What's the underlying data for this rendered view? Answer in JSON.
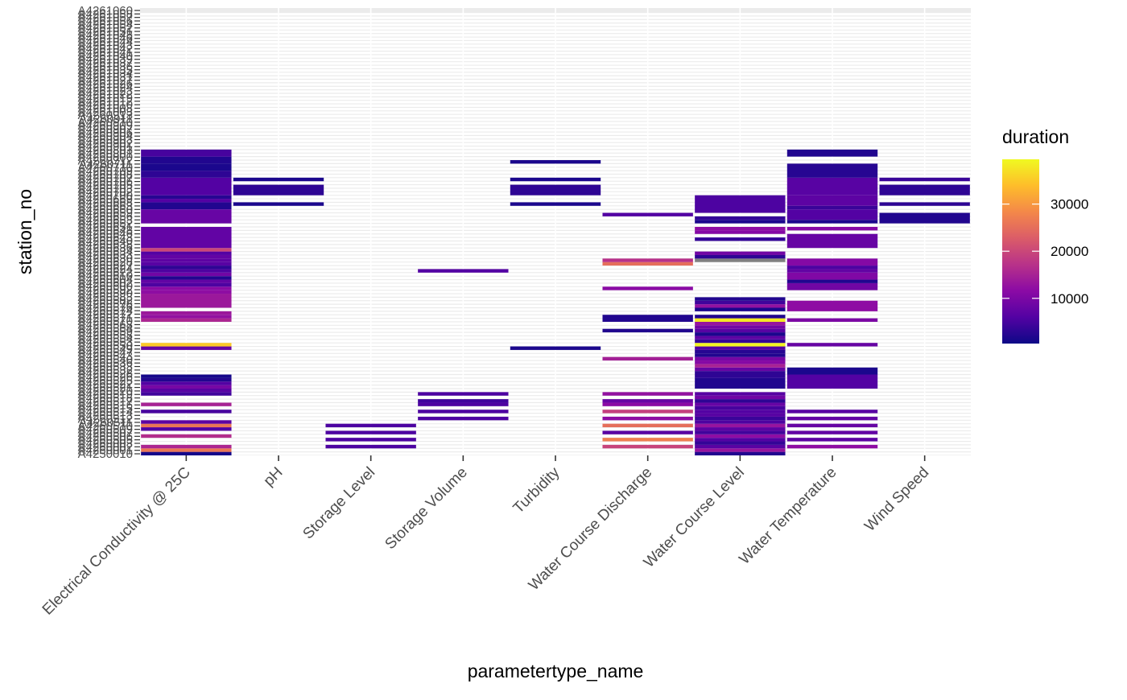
{
  "chart_data": {
    "type": "heatmap",
    "xlabel": "parametertype_name",
    "ylabel": "station_no",
    "legend_title": "duration",
    "legend_position": "right",
    "legend_ticks": [
      10000,
      20000,
      30000
    ],
    "legend_tick_labels": [
      "10000",
      "20000",
      "30000"
    ],
    "color_range": [
      400,
      39500
    ],
    "na_color": "#808080",
    "palette": [
      "#0d0887",
      "#5302a3",
      "#8b0aa5",
      "#b83289",
      "#db5c68",
      "#f48849",
      "#febd2a",
      "#f0f921"
    ],
    "x_categories": [
      "Electrical Conductivity @ 25C",
      "pH",
      "Storage Level",
      "Storage Volume",
      "Turbidity",
      "Water Course Discharge",
      "Water Course Level",
      "Water Temperature",
      "Wind Speed"
    ],
    "y_categories": [
      "A4250010",
      "A4250020",
      "A4260001",
      "A4260002",
      "A4260003",
      "A4260004",
      "A4260005",
      "A4260006",
      "A4260007",
      "A4260008",
      "A4260009",
      "A4260010",
      "A4260011",
      "A4260012",
      "A4260013",
      "A4260014",
      "A4260015",
      "A4260016",
      "A4260017",
      "A4260018",
      "A4260019",
      "A4260020",
      "A4260021",
      "A4260022",
      "A4260023",
      "A4260024",
      "A4260025",
      "A4260026",
      "A4260027",
      "A4260028",
      "A4260029",
      "A4260030",
      "A4260031",
      "A4260032",
      "A4260033",
      "A4260034",
      "A4260035",
      "A4260036",
      "A4260037",
      "A4260038",
      "A4260039",
      "A4260040",
      "A4260041",
      "A4260042",
      "A4260043",
      "A4260044",
      "A4260045",
      "A4260046",
      "A4260047",
      "A4260048",
      "A4260049",
      "A4260050",
      "A4260051",
      "A4260052",
      "A4260053",
      "A4260054",
      "A4260055",
      "A4260056",
      "A4260057",
      "A4260058",
      "A4260059",
      "A4260060",
      "A4260061",
      "A4260062",
      "A4260063",
      "A4260064",
      "A4261001",
      "A4261002",
      "A4261003",
      "A4261004",
      "A4261005",
      "A4261006",
      "A4261007",
      "A4261008",
      "A4261009",
      "A4261010",
      "A4261011",
      "A4261012",
      "A4261013",
      "A4261014",
      "A4261015",
      "A4261016",
      "A4261017",
      "A4261018",
      "A4261019",
      "A4261020",
      "A4261021",
      "A4261022",
      "A4261023",
      "A4261024",
      "A4261025",
      "A4261026",
      "A4261027",
      "A4261028",
      "A4261029",
      "A4261030",
      "A4261031",
      "A4261032",
      "A4261033",
      "A4261034",
      "A4261035",
      "A4261036",
      "A4261037",
      "A4261038",
      "A4261039",
      "A4261040",
      "A4261041",
      "A4261042",
      "A4261043",
      "A4261044",
      "A4261045",
      "A4261046",
      "A4261047",
      "A4261048",
      "A4261049",
      "A4261050",
      "A4261051",
      "A4261052",
      "A4261053",
      "A4261054",
      "A4261055",
      "A4261056",
      "A4261057",
      "A4261058",
      "A4261059",
      "A4261060"
    ],
    "y_tick_labels": [
      "A4250010",
      "A4260001",
      "A4260002",
      "A4260003",
      "A4260505",
      "A4260506",
      "A4260507",
      "A4260509",
      "A4260510",
      "A4260511",
      "A4260512",
      "A4260513",
      "A4260514",
      "A4260515",
      "A4260516",
      "A4260517",
      "A4260518",
      "A4260519",
      "A4260520",
      "A4260521",
      "A4260522",
      "A4260525",
      "A4260526",
      "A4260528",
      "A4260532",
      "A4260533",
      "A4260536",
      "A4260540",
      "A4260543",
      "A4260547",
      "A4260549",
      "A4260550",
      "A4260553",
      "A4260554",
      "A4260558",
      "A4260559",
      "A4260564",
      "A4260568",
      "A4260570",
      "A4260571",
      "A4260572",
      "A4260574",
      "A4260576",
      "A4260578",
      "A4260582",
      "A4260583",
      "A4260590",
      "A4260592",
      "A4260600",
      "A4260602",
      "A4260604",
      "A4260610",
      "A4260622",
      "A4260624",
      "A4260627",
      "A4260628",
      "A4260630",
      "A4260633",
      "A4260634",
      "A4260636",
      "A4260638",
      "A4260640",
      "A4260643",
      "A4260646",
      "A4260648",
      "A4260651",
      "A4260652",
      "A4260653",
      "A4260656",
      "A4260659",
      "A4260660",
      "A4260663",
      "A4260668",
      "A4260669",
      "A4260700",
      "A4260702",
      "A4260703",
      "A4260705",
      "A4260706",
      "A4260707",
      "A4260708",
      "A4260709",
      "A4260710",
      "A4260711",
      "A4260712",
      "A4260800",
      "A4260801",
      "A4260803",
      "A4260901",
      "A4260902",
      "A4260903",
      "A4260904",
      "A4260906",
      "A4260907",
      "A4260909",
      "A4260910",
      "A4260911",
      "A4260913",
      "A4261003",
      "A4261008",
      "A4261010",
      "A4261012",
      "A4261019",
      "A4261022",
      "A4261023",
      "A4261024",
      "A4261026",
      "A4261027",
      "A4261031",
      "A4261034",
      "A4261035",
      "A4261036",
      "A4261037",
      "A4261039",
      "A4261040",
      "A4261041",
      "A4261042",
      "A4261043",
      "A4261044",
      "A4261046",
      "A4261048",
      "A4261051",
      "A4261052",
      "A4261054",
      "A4261056",
      "A4261057",
      "A4261058",
      "A4261060"
    ],
    "tiles": [
      {
        "c": 0,
        "r0": 0,
        "r1": 0,
        "v": 1000
      },
      {
        "c": 0,
        "r0": 1,
        "r1": 1,
        "v": 26000
      },
      {
        "c": 0,
        "r0": 2,
        "r1": 2,
        "v": 15500
      },
      {
        "c": 0,
        "r0": 5,
        "r1": 5,
        "v": 16500
      },
      {
        "c": 0,
        "r0": 7,
        "r1": 7,
        "v": 6000
      },
      {
        "c": 0,
        "r0": 8,
        "r1": 8,
        "v": 26000
      },
      {
        "c": 0,
        "r0": 9,
        "r1": 9,
        "v": 7000
      },
      {
        "c": 0,
        "r0": 12,
        "r1": 12,
        "v": 5000
      },
      {
        "c": 0,
        "r0": 14,
        "r1": 14,
        "v": 15000
      },
      {
        "c": 0,
        "r0": 17,
        "r1": 17,
        "v": 4500
      },
      {
        "c": 0,
        "r0": 18,
        "r1": 18,
        "v": 6500
      },
      {
        "c": 0,
        "r0": 19,
        "r1": 19,
        "v": 9500
      },
      {
        "c": 0,
        "r0": 20,
        "r1": 20,
        "v": 6000
      },
      {
        "c": 0,
        "r0": 21,
        "r1": 21,
        "v": 2000
      },
      {
        "c": 0,
        "r0": 22,
        "r1": 22,
        "v": 1000
      },
      {
        "c": 0,
        "r0": 30,
        "r1": 30,
        "v": 8000
      },
      {
        "c": 0,
        "r0": 31,
        "r1": 31,
        "v": 35000
      },
      {
        "c": 0,
        "r0": 38,
        "r1": 38,
        "v": 15500
      },
      {
        "c": 0,
        "r0": 39,
        "r1": 39,
        "v": 12500
      },
      {
        "c": 0,
        "r0": 40,
        "r1": 40,
        "v": 13500
      },
      {
        "c": 0,
        "r0": 42,
        "r1": 45,
        "v": 13500
      },
      {
        "c": 0,
        "r0": 46,
        "r1": 46,
        "v": 12000
      },
      {
        "c": 0,
        "r0": 47,
        "r1": 47,
        "v": 11500
      },
      {
        "c": 0,
        "r0": 48,
        "r1": 48,
        "v": 5500
      },
      {
        "c": 0,
        "r0": 49,
        "r1": 49,
        "v": 7500
      },
      {
        "c": 0,
        "r0": 50,
        "r1": 50,
        "v": 2000
      },
      {
        "c": 0,
        "r0": 51,
        "r1": 51,
        "v": 9000
      },
      {
        "c": 0,
        "r0": 52,
        "r1": 52,
        "v": 5500
      },
      {
        "c": 0,
        "r0": 53,
        "r1": 53,
        "v": 3000
      },
      {
        "c": 0,
        "r0": 54,
        "r1": 54,
        "v": 6500
      },
      {
        "c": 0,
        "r0": 55,
        "r1": 55,
        "v": 7000
      },
      {
        "c": 0,
        "r0": 56,
        "r1": 56,
        "v": 7500
      },
      {
        "c": 0,
        "r0": 57,
        "r1": 57,
        "v": 6000
      },
      {
        "c": 0,
        "r0": 58,
        "r1": 58,
        "v": 20000
      },
      {
        "c": 0,
        "r0": 59,
        "r1": 64,
        "v": 7500
      },
      {
        "c": 0,
        "r0": 66,
        "r1": 69,
        "v": 8000
      },
      {
        "c": 0,
        "r0": 70,
        "r1": 71,
        "v": 2000
      },
      {
        "c": 0,
        "r0": 72,
        "r1": 72,
        "v": 6000
      },
      {
        "c": 0,
        "r0": 73,
        "r1": 73,
        "v": 2500
      },
      {
        "c": 0,
        "r0": 74,
        "r1": 78,
        "v": 6000
      },
      {
        "c": 0,
        "r0": 79,
        "r1": 80,
        "v": 3000
      },
      {
        "c": 0,
        "r0": 81,
        "r1": 82,
        "v": 1500
      },
      {
        "c": 0,
        "r0": 83,
        "r1": 84,
        "v": 2000
      },
      {
        "c": 0,
        "r0": 85,
        "r1": 86,
        "v": 5000
      },
      {
        "c": 1,
        "r0": 71,
        "r1": 71,
        "v": 1500
      },
      {
        "c": 1,
        "r0": 74,
        "r1": 76,
        "v": 3000
      },
      {
        "c": 1,
        "r0": 78,
        "r1": 78,
        "v": 1500
      },
      {
        "c": 2,
        "r0": 2,
        "r1": 2,
        "v": 5500
      },
      {
        "c": 2,
        "r0": 4,
        "r1": 4,
        "v": 5500
      },
      {
        "c": 2,
        "r0": 6,
        "r1": 6,
        "v": 5500
      },
      {
        "c": 2,
        "r0": 8,
        "r1": 8,
        "v": 5500
      },
      {
        "c": 3,
        "r0": 10,
        "r1": 10,
        "v": 5500
      },
      {
        "c": 3,
        "r0": 12,
        "r1": 12,
        "v": 5500
      },
      {
        "c": 3,
        "r0": 14,
        "r1": 14,
        "v": 5500
      },
      {
        "c": 3,
        "r0": 15,
        "r1": 15,
        "v": 4500
      },
      {
        "c": 3,
        "r0": 17,
        "r1": 17,
        "v": 5500
      },
      {
        "c": 3,
        "r0": 52,
        "r1": 52,
        "v": 6000
      },
      {
        "c": 4,
        "r0": 30,
        "r1": 30,
        "v": 1500
      },
      {
        "c": 4,
        "r0": 71,
        "r1": 71,
        "v": 1500
      },
      {
        "c": 4,
        "r0": 74,
        "r1": 76,
        "v": 3000
      },
      {
        "c": 4,
        "r0": 78,
        "r1": 78,
        "v": 1500
      },
      {
        "c": 4,
        "r0": 83,
        "r1": 83,
        "v": 1500
      },
      {
        "c": 5,
        "r0": 2,
        "r1": 2,
        "v": 19500
      },
      {
        "c": 5,
        "r0": 4,
        "r1": 4,
        "v": 27000
      },
      {
        "c": 5,
        "r0": 6,
        "r1": 6,
        "v": 6500
      },
      {
        "c": 5,
        "r0": 8,
        "r1": 8,
        "v": 25000
      },
      {
        "c": 5,
        "r0": 10,
        "r1": 10,
        "v": 12000
      },
      {
        "c": 5,
        "r0": 12,
        "r1": 12,
        "v": 19000
      },
      {
        "c": 5,
        "r0": 14,
        "r1": 14,
        "v": 11500
      },
      {
        "c": 5,
        "r0": 15,
        "r1": 15,
        "v": 8000
      },
      {
        "c": 5,
        "r0": 17,
        "r1": 17,
        "v": 12500
      },
      {
        "c": 5,
        "r0": 27,
        "r1": 27,
        "v": 14500
      },
      {
        "c": 5,
        "r0": 35,
        "r1": 35,
        "v": 2000
      },
      {
        "c": 5,
        "r0": 38,
        "r1": 39,
        "v": 2000
      },
      {
        "c": 5,
        "r0": 47,
        "r1": 47,
        "v": 11500
      },
      {
        "c": 5,
        "r0": 54,
        "r1": 54,
        "v": 25000
      },
      {
        "c": 5,
        "r0": 55,
        "r1": 55,
        "v": 17000
      },
      {
        "c": 5,
        "r0": 68,
        "r1": 68,
        "v": 6000
      },
      {
        "c": 6,
        "r0": 0,
        "r1": 0,
        "v": 2000
      },
      {
        "c": 6,
        "r0": 1,
        "r1": 1,
        "v": 13000
      },
      {
        "c": 6,
        "r0": 2,
        "r1": 2,
        "v": 6500
      },
      {
        "c": 6,
        "r0": 3,
        "r1": 3,
        "v": 3500
      },
      {
        "c": 6,
        "r0": 4,
        "r1": 4,
        "v": 6000
      },
      {
        "c": 6,
        "r0": 5,
        "r1": 5,
        "v": 12000
      },
      {
        "c": 6,
        "r0": 6,
        "r1": 6,
        "v": 4500
      },
      {
        "c": 6,
        "r0": 7,
        "r1": 7,
        "v": 7000
      },
      {
        "c": 6,
        "r0": 8,
        "r1": 8,
        "v": 13000
      },
      {
        "c": 6,
        "r0": 9,
        "r1": 9,
        "v": 5500
      },
      {
        "c": 6,
        "r0": 10,
        "r1": 10,
        "v": 4000
      },
      {
        "c": 6,
        "r0": 11,
        "r1": 11,
        "v": 6500
      },
      {
        "c": 6,
        "r0": 12,
        "r1": 12,
        "v": 6000
      },
      {
        "c": 6,
        "r0": 13,
        "r1": 13,
        "v": 5000
      },
      {
        "c": 6,
        "r0": 14,
        "r1": 14,
        "v": 8000
      },
      {
        "c": 6,
        "r0": 15,
        "r1": 15,
        "v": 3000
      },
      {
        "c": 6,
        "r0": 16,
        "r1": 16,
        "v": 9000
      },
      {
        "c": 6,
        "r0": 17,
        "r1": 17,
        "v": 6500
      },
      {
        "c": 6,
        "r0": 19,
        "r1": 21,
        "v": 2000
      },
      {
        "c": 6,
        "r0": 22,
        "r1": 23,
        "v": 3000
      },
      {
        "c": 6,
        "r0": 24,
        "r1": 24,
        "v": 8000
      },
      {
        "c": 6,
        "r0": 25,
        "r1": 25,
        "v": 15000
      },
      {
        "c": 6,
        "r0": 26,
        "r1": 26,
        "v": 11000
      },
      {
        "c": 6,
        "r0": 27,
        "r1": 27,
        "v": 9500
      },
      {
        "c": 6,
        "r0": 28,
        "r1": 28,
        "v": 2000
      },
      {
        "c": 6,
        "r0": 29,
        "r1": 29,
        "v": 2500
      },
      {
        "c": 6,
        "r0": 30,
        "r1": 30,
        "v": 6000
      },
      {
        "c": 6,
        "r0": 31,
        "r1": 31,
        "v": 39000
      },
      {
        "c": 6,
        "r0": 32,
        "r1": 32,
        "v": 3500
      },
      {
        "c": 6,
        "r0": 33,
        "r1": 33,
        "v": 7000
      },
      {
        "c": 6,
        "r0": 34,
        "r1": 34,
        "v": 1500
      },
      {
        "c": 6,
        "r0": 35,
        "r1": 35,
        "v": 6500
      },
      {
        "c": 6,
        "r0": 36,
        "r1": 36,
        "v": 9000
      },
      {
        "c": 6,
        "r0": 37,
        "r1": 37,
        "v": 13000
      },
      {
        "c": 6,
        "r0": 38,
        "r1": 38,
        "v": 38000
      },
      {
        "c": 6,
        "r0": 39,
        "r1": 39,
        "v": 2000
      },
      {
        "c": 6,
        "r0": 41,
        "r1": 41,
        "v": 1500
      },
      {
        "c": 6,
        "r0": 42,
        "r1": 42,
        "v": 12500
      },
      {
        "c": 6,
        "r0": 43,
        "r1": 43,
        "v": 4500
      },
      {
        "c": 6,
        "r0": 44,
        "r1": 44,
        "v": 2000
      },
      {
        "c": 6,
        "r0": 55,
        "r1": 55,
        "v": "NA"
      },
      {
        "c": 6,
        "r0": 56,
        "r1": 56,
        "v": 3000
      },
      {
        "c": 6,
        "r0": 57,
        "r1": 57,
        "v": 9000
      },
      {
        "c": 6,
        "r0": 61,
        "r1": 61,
        "v": 3500
      },
      {
        "c": 6,
        "r0": 63,
        "r1": 63,
        "v": 11000
      },
      {
        "c": 6,
        "r0": 64,
        "r1": 64,
        "v": 12000
      },
      {
        "c": 6,
        "r0": 66,
        "r1": 66,
        "v": 1500
      },
      {
        "c": 6,
        "r0": 67,
        "r1": 67,
        "v": 3500
      },
      {
        "c": 6,
        "r0": 69,
        "r1": 73,
        "v": 5500
      },
      {
        "c": 7,
        "r0": 2,
        "r1": 2,
        "v": 12000
      },
      {
        "c": 7,
        "r0": 4,
        "r1": 4,
        "v": 7000
      },
      {
        "c": 7,
        "r0": 6,
        "r1": 6,
        "v": 7500
      },
      {
        "c": 7,
        "r0": 8,
        "r1": 8,
        "v": 8000
      },
      {
        "c": 7,
        "r0": 10,
        "r1": 10,
        "v": 7500
      },
      {
        "c": 7,
        "r0": 12,
        "r1": 12,
        "v": 6500
      },
      {
        "c": 7,
        "r0": 19,
        "r1": 22,
        "v": 6000
      },
      {
        "c": 7,
        "r0": 23,
        "r1": 24,
        "v": 1500
      },
      {
        "c": 7,
        "r0": 31,
        "r1": 31,
        "v": 8000
      },
      {
        "c": 7,
        "r0": 38,
        "r1": 38,
        "v": 10000
      },
      {
        "c": 7,
        "r0": 41,
        "r1": 43,
        "v": 12000
      },
      {
        "c": 7,
        "r0": 47,
        "r1": 48,
        "v": 9000
      },
      {
        "c": 7,
        "r0": 49,
        "r1": 49,
        "v": 2000
      },
      {
        "c": 7,
        "r0": 50,
        "r1": 51,
        "v": 10500
      },
      {
        "c": 7,
        "r0": 52,
        "r1": 52,
        "v": 7500
      },
      {
        "c": 7,
        "r0": 53,
        "r1": 53,
        "v": 5500
      },
      {
        "c": 7,
        "r0": 54,
        "r1": 55,
        "v": 11000
      },
      {
        "c": 7,
        "r0": 59,
        "r1": 62,
        "v": 8000
      },
      {
        "c": 7,
        "r0": 64,
        "r1": 64,
        "v": 11000
      },
      {
        "c": 7,
        "r0": 66,
        "r1": 66,
        "v": 1500
      },
      {
        "c": 7,
        "r0": 67,
        "r1": 69,
        "v": 6000
      },
      {
        "c": 7,
        "r0": 70,
        "r1": 70,
        "v": 4000
      },
      {
        "c": 7,
        "r0": 71,
        "r1": 73,
        "v": 7000
      },
      {
        "c": 7,
        "r0": 74,
        "r1": 78,
        "v": 6500
      },
      {
        "c": 7,
        "r0": 79,
        "r1": 82,
        "v": 2500
      },
      {
        "c": 7,
        "r0": 85,
        "r1": 86,
        "v": 2000
      },
      {
        "c": 8,
        "r0": 66,
        "r1": 68,
        "v": 2000
      },
      {
        "c": 8,
        "r0": 71,
        "r1": 71,
        "v": 3000
      },
      {
        "c": 8,
        "r0": 74,
        "r1": 76,
        "v": 3000
      },
      {
        "c": 8,
        "r0": 78,
        "r1": 78,
        "v": 4000
      }
    ]
  }
}
